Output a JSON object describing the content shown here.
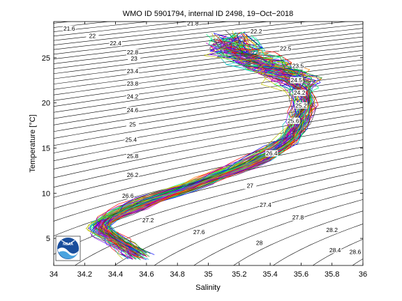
{
  "chart_data": {
    "type": "line",
    "title": "WMO ID 5901794, internal ID 2498, 19−Oct−2018",
    "xlabel": "Salinity",
    "ylabel": "Temperature [°C]",
    "xlim": [
      34,
      36
    ],
    "ylim": [
      2,
      29
    ],
    "x_ticks": [
      34,
      34.2,
      34.4,
      34.6,
      34.8,
      35,
      35.2,
      35.4,
      35.6,
      35.8,
      36
    ],
    "x_tick_labels": [
      "34",
      "34.2",
      "34.4",
      "34.6",
      "34.8",
      "35",
      "35.2",
      "35.4",
      "35.6",
      "35.8",
      "36"
    ],
    "y_ticks": [
      5,
      10,
      15,
      20,
      25
    ],
    "y_tick_labels": [
      "5",
      "10",
      "15",
      "20",
      "25"
    ],
    "grid": false,
    "density_contours": {
      "levels": [
        "21.6",
        "22",
        "22.4",
        "22.8",
        "23",
        "23.4",
        "23.8",
        "24.2",
        "24.6",
        "25",
        "25.4",
        "25.8",
        "26.2",
        "26.6",
        "27",
        "27.2",
        "27.4",
        "27.6",
        "27.8",
        "28",
        "28.2",
        "28.4",
        "28.6",
        "21.8",
        "22.2",
        "24.2",
        "25.2",
        "25.6",
        "26.4",
        "26.9"
      ],
      "labels": [
        {
          "text": "21.6",
          "s": 34.1,
          "t": 28.1
        },
        {
          "text": "22",
          "s": 34.25,
          "t": 27.3
        },
        {
          "text": "22.4",
          "s": 34.4,
          "t": 26.5
        },
        {
          "text": "22.8",
          "s": 34.51,
          "t": 25.5
        },
        {
          "text": "23",
          "s": 34.52,
          "t": 24.8
        },
        {
          "text": "23.4",
          "s": 34.51,
          "t": 23.4
        },
        {
          "text": "23.8",
          "s": 34.51,
          "t": 22.0
        },
        {
          "text": "24.2",
          "s": 34.51,
          "t": 20.6
        },
        {
          "text": "24.6",
          "s": 34.51,
          "t": 19.1
        },
        {
          "text": "25",
          "s": 34.51,
          "t": 17.5
        },
        {
          "text": "25.4",
          "s": 34.5,
          "t": 15.8
        },
        {
          "text": "25.8",
          "s": 34.51,
          "t": 14.0
        },
        {
          "text": "26.2",
          "s": 34.51,
          "t": 11.9
        },
        {
          "text": "26.6",
          "s": 34.48,
          "t": 9.6
        },
        {
          "text": "27.2",
          "s": 34.61,
          "t": 6.9
        },
        {
          "text": "27.6",
          "s": 34.94,
          "t": 5.6
        },
        {
          "text": "28",
          "s": 35.33,
          "t": 4.4
        },
        {
          "text": "28.4",
          "s": 35.82,
          "t": 3.6
        },
        {
          "text": "28.6",
          "s": 35.95,
          "t": 3.4
        },
        {
          "text": "27",
          "s": 35.27,
          "t": 10.7
        },
        {
          "text": "27.4",
          "s": 35.37,
          "t": 8.6
        },
        {
          "text": "27.8",
          "s": 35.58,
          "t": 7.2
        },
        {
          "text": "28.2",
          "s": 35.8,
          "t": 5.8
        },
        {
          "text": "21.8",
          "s": 34.9,
          "t": 28.7
        },
        {
          "text": "22.2",
          "s": 35.31,
          "t": 27.8
        },
        {
          "text": "24.2",
          "s": 35.59,
          "t": 21.0
        },
        {
          "text": "25.2",
          "s": 35.6,
          "t": 19.6
        },
        {
          "text": "25.6",
          "s": 35.55,
          "t": 17.9
        },
        {
          "text": "26.4",
          "s": 35.41,
          "t": 14.3
        },
        {
          "text": "22.5",
          "s": 35.5,
          "t": 25.9
        },
        {
          "text": "23.5",
          "s": 35.58,
          "t": 24.0
        },
        {
          "text": "24.5",
          "s": 35.57,
          "t": 22.4
        }
      ]
    },
    "series": [
      {
        "values_s": [
          34.55,
          34.5,
          34.45,
          34.4,
          34.36,
          34.32,
          34.3,
          34.34,
          34.42,
          34.52,
          34.62,
          34.74,
          34.86,
          34.98,
          35.1,
          35.22,
          35.34,
          35.44,
          35.52,
          35.56,
          35.58,
          35.6,
          35.62,
          35.62,
          35.6,
          35.56,
          35.5,
          35.42,
          35.34,
          35.26,
          35.2,
          35.16,
          35.14
        ],
        "values_t": [
          3.0,
          3.6,
          4.2,
          4.8,
          5.3,
          5.8,
          6.4,
          7.1,
          7.8,
          8.5,
          9.2,
          9.9,
          10.6,
          11.4,
          12.2,
          13.0,
          13.9,
          14.9,
          15.9,
          16.9,
          17.8,
          18.7,
          19.6,
          20.5,
          21.4,
          22.3,
          23.1,
          23.8,
          24.4,
          25.0,
          25.6,
          26.3,
          27.2
        ]
      }
    ]
  }
}
